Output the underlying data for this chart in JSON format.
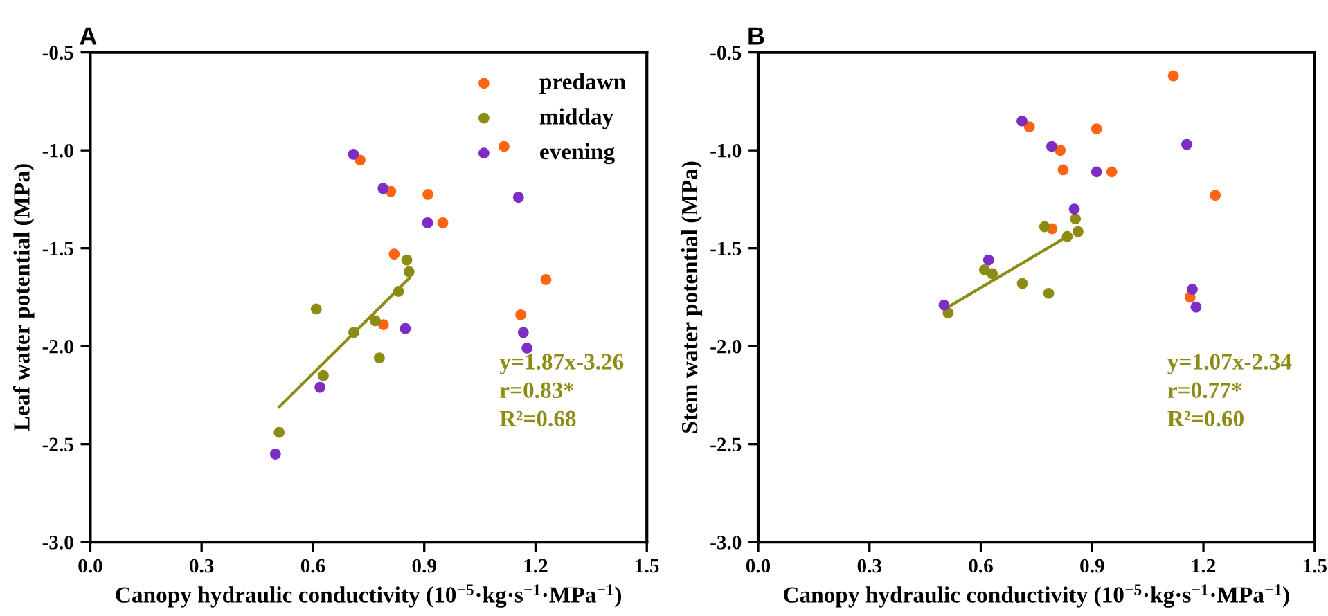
{
  "chart_data": [
    {
      "type": "scatter",
      "title": "A",
      "xlabel": "Canopy hydraulic conductivity (10$^{−5}$·kg·s$^{−1}$·MPa$^{−1}$)",
      "ylabel": "Leaf water potential (MPa)",
      "xlim": [
        0,
        1.5
      ],
      "xticks": [
        {
          "value": 0,
          "label": "0.0"
        },
        0.3,
        0.6,
        0.9,
        1.2,
        1.5
      ],
      "ylim": [
        -3.0,
        -0.5
      ],
      "yticks": [
        {
          "value": -3,
          "label": "-3.0"
        },
        -2.5,
        {
          "value": -2,
          "label": "-2.0"
        },
        -1.5,
        {
          "value": -1,
          "label": "-1.0"
        },
        -0.5
      ],
      "grid": false,
      "legend": "top right",
      "marker": "circle",
      "annotations": [
        "y=1.87x-3.26",
        "r=0.83*",
        "R²=0.68"
      ],
      "series": [
        {
          "name": "predawn",
          "color": "#ff6414",
          "x": [
            1.115,
            0.727,
            0.81,
            0.91,
            0.95,
            0.819,
            1.228,
            1.16,
            0.79
          ],
          "values": [
            -0.98,
            -1.05,
            -1.21,
            -1.225,
            -1.37,
            -1.53,
            -1.66,
            -1.84,
            -1.89
          ]
        },
        {
          "name": "midday",
          "color": "#8c8c14",
          "x": [
            0.853,
            0.859,
            0.831,
            0.609,
            0.768,
            0.71,
            0.779,
            0.628,
            0.509
          ],
          "values": [
            -1.56,
            -1.62,
            -1.72,
            -1.81,
            -1.87,
            -1.93,
            -2.06,
            -2.15,
            -2.44
          ]
        },
        {
          "name": "evening",
          "color": "#7d2dc3",
          "x": [
            1.154,
            0.709,
            0.789,
            0.909,
            0.849,
            1.167,
            1.177,
            0.619,
            0.499
          ],
          "values": [
            -1.24,
            -1.02,
            -1.195,
            -1.37,
            -1.91,
            -1.93,
            -2.01,
            -2.21,
            -2.55
          ]
        },
        {
          "type": "line",
          "color": "#8c8c14",
          "marker": "none",
          "x": [
            0.509,
            0.861
          ],
          "values": [
            -2.31,
            -1.65
          ]
        }
      ]
    },
    {
      "type": "scatter",
      "title": "B",
      "xlabel": "Canopy hydraulic conductivity (10$^{−5}$·kg·s$^{−1}$·MPa$^{−1}$)",
      "ylabel": "Stem water potential (MPa)",
      "xlim": [
        0,
        1.5
      ],
      "xticks": [
        {
          "value": 0,
          "label": "0.0"
        },
        0.3,
        0.6,
        0.9,
        1.2,
        1.5
      ],
      "ylim": [
        -3.0,
        -0.5
      ],
      "yticks": [
        {
          "value": -3,
          "label": "-3.0"
        },
        -2.5,
        {
          "value": -2,
          "label": "-2.0"
        },
        -1.5,
        {
          "value": -1,
          "label": "-1.0"
        },
        -0.5
      ],
      "grid": false,
      "marker": "circle",
      "annotations": [
        "y=1.07x-2.34",
        "r=0.77*",
        "R²=0.60"
      ],
      "series": [
        {
          "color": "#ff6414",
          "x": [
            1.119,
            0.731,
            0.912,
            0.814,
            0.822,
            0.953,
            1.232,
            0.792,
            1.164
          ],
          "values": [
            -0.62,
            -0.88,
            -0.89,
            -1.0,
            -1.1,
            -1.11,
            -1.23,
            -1.4,
            -1.75
          ]
        },
        {
          "color": "#8c8c14",
          "x": [
            0.855,
            0.862,
            0.833,
            0.772,
            0.61,
            0.631,
            0.712,
            0.783,
            0.512
          ],
          "values": [
            -1.35,
            -1.415,
            -1.44,
            -1.39,
            -1.61,
            -1.63,
            -1.68,
            -1.73,
            -1.83
          ]
        },
        {
          "color": "#7d2dc3",
          "x": [
            0.711,
            0.791,
            0.912,
            1.155,
            0.852,
            0.621,
            0.501,
            1.17,
            1.18
          ],
          "values": [
            -0.85,
            -0.98,
            -1.11,
            -0.97,
            -1.3,
            -1.56,
            -1.79,
            -1.71,
            -1.8
          ]
        },
        {
          "type": "line",
          "color": "#8c8c14",
          "marker": "none",
          "x": [
            0.512,
            0.833
          ],
          "values": [
            -1.8,
            -1.44
          ]
        }
      ]
    }
  ]
}
